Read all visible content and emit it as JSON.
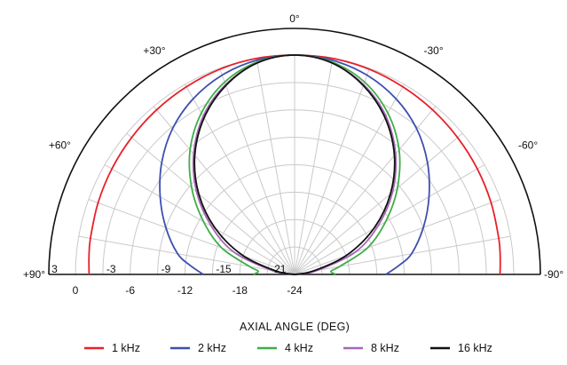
{
  "chart_data": {
    "type": "polar-half",
    "xlabel": "AXIAL ANGLE (DEG)",
    "radial_range": [
      -24,
      0
    ],
    "radial_step": 3,
    "angle_range": [
      -90,
      90
    ],
    "angle_step": 10,
    "grid": true,
    "legend_position": "bottom",
    "angle_labels": [
      {
        "angle": 0,
        "text": "0°"
      },
      {
        "angle": 30,
        "text": "+30°"
      },
      {
        "angle": -30,
        "text": "-30°"
      },
      {
        "angle": 60,
        "text": "+60°"
      },
      {
        "angle": -60,
        "text": "-60°"
      },
      {
        "angle": 90,
        "text": "+90°"
      },
      {
        "angle": -90,
        "text": "-90°"
      }
    ],
    "radial_labels_upper": [
      {
        "value": 3,
        "text": "3"
      },
      {
        "value": -3,
        "text": "-3"
      },
      {
        "value": -9,
        "text": "-9"
      },
      {
        "value": -15,
        "text": "-15"
      },
      {
        "value": -21,
        "text": "-21"
      }
    ],
    "radial_labels_lower": [
      {
        "value": 0,
        "text": "0"
      },
      {
        "value": -6,
        "text": "-6"
      },
      {
        "value": -12,
        "text": "-12"
      },
      {
        "value": -18,
        "text": "-18"
      },
      {
        "value": -24,
        "text": "-24"
      }
    ],
    "angles": [
      0,
      10,
      20,
      30,
      40,
      50,
      60,
      70,
      80,
      85,
      90
    ],
    "series": [
      {
        "name": "1 kHz",
        "color": "#e8202a",
        "values": [
          0,
          0,
          -0.1,
          -0.3,
          -0.5,
          -0.7,
          -0.9,
          -1.1,
          -1.3,
          -1.4,
          -1.5
        ]
      },
      {
        "name": "2 kHz",
        "color": "#3d4fb0",
        "values": [
          0,
          -0.2,
          -0.8,
          -1.8,
          -3.2,
          -5.0,
          -7.0,
          -9.0,
          -11.0,
          -12.5,
          -14.0
        ]
      },
      {
        "name": "4 kHz",
        "color": "#3fae4a",
        "values": [
          0,
          -0.4,
          -1.6,
          -3.6,
          -6.2,
          -9.3,
          -12.5,
          -15.5,
          -19.0,
          -20.0,
          -19.5
        ]
      },
      {
        "name": "8 kHz",
        "color": "#a567b5",
        "values": [
          0,
          -0.5,
          -1.9,
          -4.0,
          -6.8,
          -10.0,
          -13.5,
          -17.0,
          -21.5,
          -23.5,
          -24
        ]
      },
      {
        "name": "16 kHz",
        "color": "#111111",
        "values": [
          0,
          -0.5,
          -2.0,
          -4.2,
          -7.0,
          -10.3,
          -14.0,
          -18.0,
          -22.0,
          -24,
          -24
        ]
      }
    ]
  }
}
